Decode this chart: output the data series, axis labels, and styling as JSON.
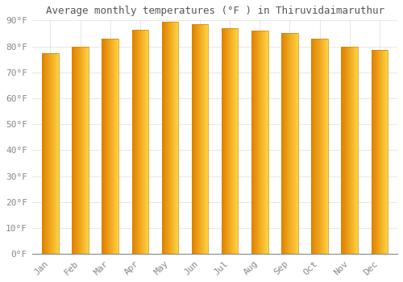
{
  "title": "Average monthly temperatures (°F ) in Thiruvidaimaruthur",
  "months": [
    "Jan",
    "Feb",
    "Mar",
    "Apr",
    "May",
    "Jun",
    "Jul",
    "Aug",
    "Sep",
    "Oct",
    "Nov",
    "Dec"
  ],
  "temperatures": [
    77.5,
    80.0,
    83.0,
    86.5,
    89.5,
    88.5,
    87.0,
    86.0,
    85.0,
    83.0,
    80.0,
    78.5
  ],
  "bar_color_left": "#E07800",
  "bar_color_right": "#FFD040",
  "bar_color_mid": "#FFA500",
  "background_color": "#FFFFFF",
  "grid_color": "#DDDDDD",
  "ylim": [
    0,
    90
  ],
  "ytick_values": [
    0,
    10,
    20,
    30,
    40,
    50,
    60,
    70,
    80,
    90
  ],
  "title_fontsize": 9,
  "tick_fontsize": 8,
  "title_color": "#555555",
  "tick_label_color": "#888888",
  "bar_width": 0.55
}
